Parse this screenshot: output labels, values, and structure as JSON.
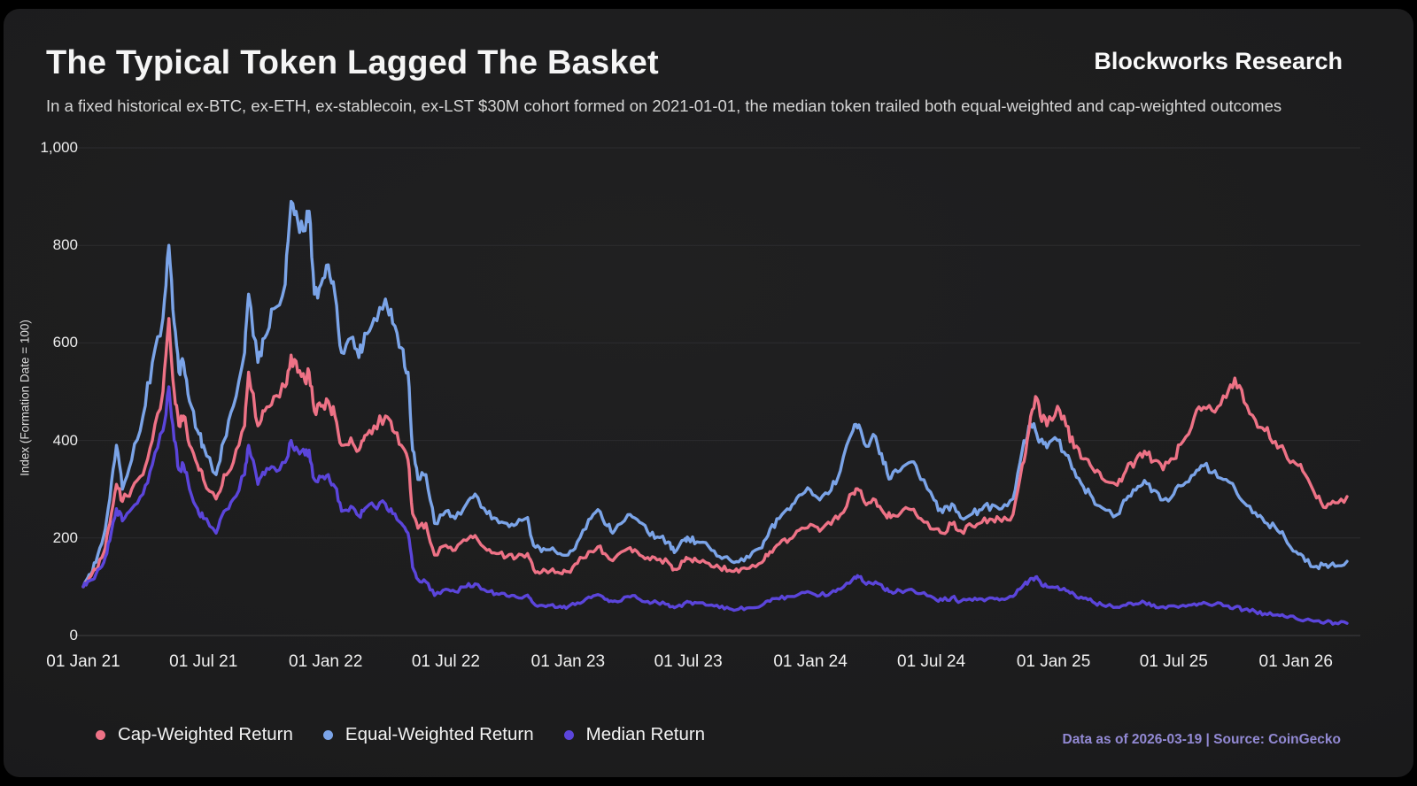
{
  "header": {
    "title": "The Typical Token Lagged The Basket",
    "subtitle": "In a fixed historical ex-BTC, ex-ETH, ex-stablecoin, ex-LST $30M cohort formed on 2021-01-01, the median token trailed both equal-weighted and cap-weighted outcomes",
    "brand": "Blockworks Research"
  },
  "footer": {
    "attribution": "Data as of 2026-03-19 | Source: CoinGecko"
  },
  "colors": {
    "background": "#1d1d1e",
    "frame": "#000000",
    "grid": "#2d2d2f",
    "zero_line": "#3f3f41",
    "title_text": "#f5f5f5",
    "subtitle_text": "#d6d6d6",
    "attribution_text": "#9289d3",
    "cap_weighted": "#ee7286",
    "equal_weighted": "#7ba4e8",
    "median": "#5b45db"
  },
  "chart_data": {
    "type": "line",
    "title": "The Typical Token Lagged The Basket",
    "xlabel": "",
    "ylabel": "Index (Formation Date = 100)",
    "ylim": [
      0,
      1000
    ],
    "grid": "horizontal",
    "legend_position": "bottom",
    "yticks": [
      0,
      200,
      400,
      600,
      800,
      1000
    ],
    "ytick_labels": [
      "0",
      "200",
      "400",
      "600",
      "800",
      "1,000"
    ],
    "xticks": [
      {
        "date": "2021-01-01",
        "label": "01 Jan 21"
      },
      {
        "date": "2021-07-01",
        "label": "01 Jul 21"
      },
      {
        "date": "2022-01-01",
        "label": "01 Jan 22"
      },
      {
        "date": "2022-07-01",
        "label": "01 Jul 22"
      },
      {
        "date": "2023-01-01",
        "label": "01 Jan 23"
      },
      {
        "date": "2023-07-01",
        "label": "01 Jul 23"
      },
      {
        "date": "2024-01-01",
        "label": "01 Jan 24"
      },
      {
        "date": "2024-07-01",
        "label": "01 Jul 24"
      },
      {
        "date": "2025-01-01",
        "label": "01 Jan 25"
      },
      {
        "date": "2025-07-01",
        "label": "01 Jul 25"
      },
      {
        "date": "2026-01-01",
        "label": "01 Jan 26"
      }
    ],
    "x_domain": [
      "2021-01-01",
      "2026-03-19"
    ],
    "x": [
      "2021-01-01",
      "2021-01-10",
      "2021-01-20",
      "2021-02-01",
      "2021-02-10",
      "2021-02-20",
      "2021-03-01",
      "2021-03-15",
      "2021-04-01",
      "2021-04-15",
      "2021-05-01",
      "2021-05-10",
      "2021-05-18",
      "2021-05-25",
      "2021-06-01",
      "2021-06-10",
      "2021-06-22",
      "2021-07-01",
      "2021-07-20",
      "2021-08-01",
      "2021-08-15",
      "2021-09-01",
      "2021-09-07",
      "2021-09-21",
      "2021-10-01",
      "2021-10-15",
      "2021-11-01",
      "2021-11-10",
      "2021-11-20",
      "2021-12-01",
      "2021-12-07",
      "2021-12-15",
      "2021-12-25",
      "2022-01-05",
      "2022-01-15",
      "2022-01-25",
      "2022-02-08",
      "2022-02-20",
      "2022-03-01",
      "2022-03-15",
      "2022-04-01",
      "2022-04-12",
      "2022-04-25",
      "2022-05-05",
      "2022-05-12",
      "2022-05-20",
      "2022-06-01",
      "2022-06-14",
      "2022-07-01",
      "2022-07-15",
      "2022-08-01",
      "2022-08-14",
      "2022-09-01",
      "2022-09-15",
      "2022-10-01",
      "2022-10-15",
      "2022-11-01",
      "2022-11-10",
      "2022-11-22",
      "2022-12-05",
      "2022-12-20",
      "2023-01-01",
      "2023-01-15",
      "2023-02-01",
      "2023-02-15",
      "2023-03-01",
      "2023-03-12",
      "2023-04-01",
      "2023-04-15",
      "2023-05-01",
      "2023-05-15",
      "2023-06-01",
      "2023-06-10",
      "2023-06-25",
      "2023-07-01",
      "2023-07-14",
      "2023-08-01",
      "2023-08-17",
      "2023-09-01",
      "2023-09-15",
      "2023-10-01",
      "2023-10-20",
      "2023-11-01",
      "2023-11-15",
      "2023-12-01",
      "2023-12-15",
      "2024-01-01",
      "2024-01-15",
      "2024-02-01",
      "2024-02-15",
      "2024-03-05",
      "2024-03-14",
      "2024-03-25",
      "2024-04-08",
      "2024-04-20",
      "2024-05-01",
      "2024-05-15",
      "2024-06-01",
      "2024-06-15",
      "2024-07-05",
      "2024-07-18",
      "2024-08-01",
      "2024-08-14",
      "2024-09-01",
      "2024-09-15",
      "2024-10-01",
      "2024-10-15",
      "2024-11-01",
      "2024-11-15",
      "2024-11-25",
      "2024-12-05",
      "2024-12-12",
      "2024-12-22",
      "2025-01-07",
      "2025-01-20",
      "2025-02-01",
      "2025-02-15",
      "2025-03-01",
      "2025-03-15",
      "2025-04-07",
      "2025-04-20",
      "2025-05-05",
      "2025-05-18",
      "2025-06-01",
      "2025-06-15",
      "2025-07-01",
      "2025-07-15",
      "2025-08-01",
      "2025-08-15",
      "2025-09-01",
      "2025-09-18",
      "2025-10-01",
      "2025-10-15",
      "2025-11-01",
      "2025-11-15",
      "2025-12-01",
      "2025-12-15",
      "2026-01-01",
      "2026-01-15",
      "2026-02-01",
      "2026-02-15",
      "2026-03-01",
      "2026-03-19"
    ],
    "series": [
      {
        "name": "Cap-Weighted Return",
        "color": "#ee7286",
        "values": [
          100,
          118,
          135,
          170,
          230,
          310,
          275,
          300,
          330,
          400,
          500,
          650,
          500,
          430,
          450,
          390,
          350,
          320,
          280,
          330,
          355,
          430,
          540,
          430,
          460,
          490,
          510,
          575,
          540,
          520,
          540,
          460,
          470,
          480,
          450,
          390,
          405,
          380,
          410,
          430,
          450,
          420,
          390,
          360,
          250,
          220,
          230,
          165,
          185,
          175,
          195,
          205,
          175,
          168,
          162,
          160,
          168,
          136,
          130,
          132,
          128,
          131,
          148,
          172,
          182,
          163,
          158,
          178,
          172,
          160,
          155,
          150,
          136,
          152,
          158,
          153,
          148,
          139,
          134,
          130,
          138,
          150,
          172,
          188,
          198,
          216,
          228,
          214,
          228,
          248,
          292,
          298,
          268,
          278,
          252,
          242,
          250,
          258,
          240,
          218,
          210,
          228,
          215,
          224,
          232,
          238,
          234,
          248,
          350,
          420,
          490,
          450,
          430,
          470,
          430,
          385,
          362,
          342,
          322,
          308,
          338,
          360,
          378,
          358,
          340,
          362,
          398,
          448,
          468,
          458,
          488,
          528,
          478,
          442,
          420,
          398,
          378,
          352,
          330,
          282,
          262,
          272,
          285
        ]
      },
      {
        "name": "Equal-Weighted Return",
        "color": "#7ba4e8",
        "values": [
          100,
          125,
          150,
          205,
          280,
          390,
          300,
          360,
          450,
          560,
          650,
          800,
          640,
          540,
          560,
          480,
          420,
          390,
          330,
          400,
          470,
          580,
          700,
          560,
          610,
          670,
          720,
          890,
          850,
          830,
          870,
          700,
          720,
          760,
          700,
          580,
          610,
          570,
          620,
          650,
          690,
          640,
          590,
          540,
          380,
          320,
          330,
          230,
          255,
          240,
          270,
          290,
          250,
          240,
          230,
          228,
          242,
          185,
          172,
          176,
          168,
          165,
          192,
          238,
          258,
          225,
          215,
          248,
          238,
          212,
          202,
          192,
          170,
          196,
          200,
          192,
          182,
          162,
          156,
          151,
          160,
          180,
          218,
          240,
          258,
          288,
          298,
          278,
          298,
          338,
          420,
          432,
          388,
          408,
          352,
          322,
          338,
          356,
          320,
          278,
          252,
          270,
          242,
          250,
          258,
          268,
          260,
          280,
          380,
          430,
          420,
          400,
          385,
          400,
          370,
          340,
          305,
          282,
          262,
          248,
          278,
          298,
          318,
          298,
          278,
          290,
          308,
          330,
          348,
          338,
          320,
          302,
          272,
          252,
          232,
          222,
          202,
          172,
          152,
          142,
          146,
          142,
          152
        ]
      },
      {
        "name": "Median Return",
        "color": "#5b45db",
        "values": [
          100,
          112,
          125,
          150,
          195,
          260,
          235,
          260,
          290,
          350,
          420,
          510,
          400,
          340,
          350,
          300,
          260,
          240,
          210,
          255,
          280,
          330,
          390,
          310,
          330,
          345,
          355,
          400,
          380,
          370,
          380,
          320,
          325,
          330,
          305,
          255,
          265,
          245,
          260,
          265,
          270,
          250,
          230,
          210,
          140,
          115,
          110,
          82,
          95,
          90,
          100,
          106,
          90,
          86,
          81,
          79,
          83,
          66,
          62,
          62,
          60,
          59,
          67,
          79,
          84,
          74,
          71,
          80,
          77,
          70,
          68,
          64,
          57,
          66,
          69,
          67,
          62,
          57,
          55,
          54,
          57,
          62,
          70,
          75,
          80,
          85,
          88,
          82,
          88,
          95,
          116,
          120,
          105,
          110,
          96,
          90,
          92,
          95,
          86,
          77,
          72,
          78,
          70,
          72,
          75,
          77,
          75,
          80,
          100,
          112,
          120,
          110,
          100,
          100,
          92,
          85,
          76,
          69,
          63,
          58,
          62,
          65,
          68,
          63,
          59,
          61,
          62,
          65,
          68,
          64,
          61,
          58,
          53,
          49,
          45,
          42,
          39,
          35,
          32,
          30,
          28,
          26,
          25
        ]
      }
    ]
  }
}
